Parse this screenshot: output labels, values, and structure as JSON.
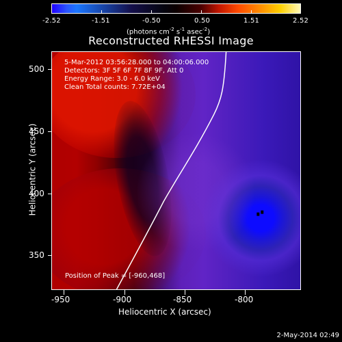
{
  "colorbar": {
    "labels": [
      "-2.52",
      "-1.51",
      "-0.50",
      "0.50",
      "1.51",
      "2.52"
    ],
    "units_prefix": "(photons cm",
    "units_exp1": "-2",
    "units_mid1": " s",
    "units_exp2": "-1",
    "units_mid2": " asec",
    "units_exp3": "-2",
    "units_suffix": ")"
  },
  "title": "Reconstructed RHESSI Image",
  "info": {
    "line1": "5-Mar-2012 03:56:28.000 to 04:00:06.000",
    "line2": "Detectors: 3F 5F 6F 7F 8F 9F, Att 0",
    "line3": "Energy Range: 3.0 - 6.0 keV",
    "line4": "Clean    Total counts: 7.72E+04",
    "peak": "Position of Peak = [-960,468]"
  },
  "axes": {
    "x_title": "Heliocentric X (arcsec)",
    "y_title": "Heliocentric Y (arcsec)",
    "x_ticks": [
      "-950",
      "-900",
      "-850",
      "-800"
    ],
    "y_ticks": [
      "500",
      "450",
      "400",
      "350"
    ]
  },
  "timestamp": "2-May-2014 02:49",
  "colors": {
    "background": "#000000",
    "foreground": "#ffffff",
    "hot_red": "#b20000",
    "violet": "#6124c6",
    "deep_blue": "#1b16d8"
  }
}
